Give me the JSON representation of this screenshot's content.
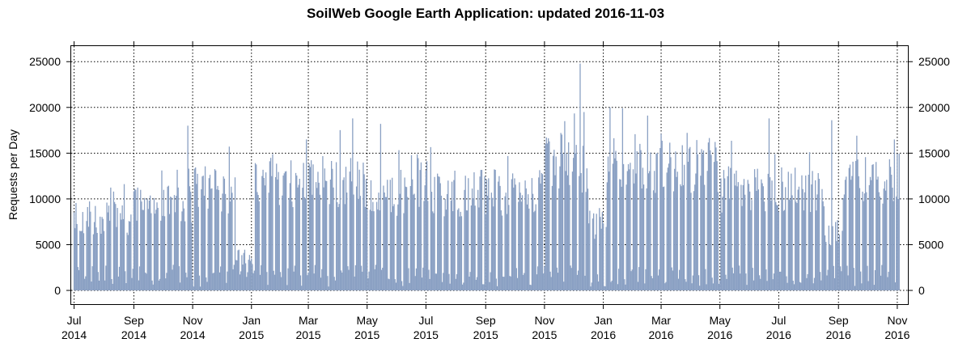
{
  "chart_data": {
    "type": "bar",
    "title": "SoilWeb Google Earth Application: updated 2016-11-03",
    "xlabel": "",
    "ylabel": "Requests per Day",
    "ylim": [
      -1500,
      26700
    ],
    "xlim": [
      "2014-06-28",
      "2016-11-12"
    ],
    "y_ticks": [
      0,
      5000,
      10000,
      15000,
      20000,
      25000
    ],
    "x_ticks": [
      {
        "date": "2014-07-01",
        "label": [
          "Jul",
          "2014"
        ]
      },
      {
        "date": "2014-09-01",
        "label": [
          "Sep",
          "2014"
        ]
      },
      {
        "date": "2014-11-01",
        "label": [
          "Nov",
          "2014"
        ]
      },
      {
        "date": "2015-01-01",
        "label": [
          "Jan",
          "2015"
        ]
      },
      {
        "date": "2015-03-01",
        "label": [
          "Mar",
          "2015"
        ]
      },
      {
        "date": "2015-05-01",
        "label": [
          "May",
          "2015"
        ]
      },
      {
        "date": "2015-07-01",
        "label": [
          "Jul",
          "2015"
        ]
      },
      {
        "date": "2015-09-01",
        "label": [
          "Sep",
          "2015"
        ]
      },
      {
        "date": "2015-11-01",
        "label": [
          "Nov",
          "2015"
        ]
      },
      {
        "date": "2016-01-01",
        "label": [
          "Jan",
          "2016"
        ]
      },
      {
        "date": "2016-03-01",
        "label": [
          "Mar",
          "2016"
        ]
      },
      {
        "date": "2016-05-01",
        "label": [
          "May",
          "2016"
        ]
      },
      {
        "date": "2016-07-01",
        "label": [
          "Jul",
          "2016"
        ]
      },
      {
        "date": "2016-09-01",
        "label": [
          "Sep",
          "2016"
        ]
      },
      {
        "date": "2016-11-01",
        "label": [
          "Nov",
          "2016"
        ]
      }
    ],
    "grid": true,
    "bar_color": "#8aa0c3",
    "series": [
      {
        "start_date": "2014-07-01",
        "end_date": "2016-11-03",
        "interval": "day",
        "weekly_profile": "one or two low days (~500-3000) each week, remaining days high",
        "approx_weekday_level_by_period": [
          {
            "from": "2014-07-01",
            "to": "2014-08-31",
            "value": 8500
          },
          {
            "from": "2014-09-01",
            "to": "2014-10-31",
            "value": 10000
          },
          {
            "from": "2014-11-01",
            "to": "2014-12-15",
            "value": 12000
          },
          {
            "from": "2014-12-16",
            "to": "2015-01-04",
            "value": 4000
          },
          {
            "from": "2015-01-05",
            "to": "2015-04-30",
            "value": 13000
          },
          {
            "from": "2015-05-01",
            "to": "2015-10-31",
            "value": 11500
          },
          {
            "from": "2015-11-01",
            "to": "2015-12-15",
            "value": 15000
          },
          {
            "from": "2015-12-16",
            "to": "2016-01-04",
            "value": 8000
          },
          {
            "from": "2016-01-05",
            "to": "2016-04-30",
            "value": 15000
          },
          {
            "from": "2016-05-01",
            "to": "2016-08-15",
            "value": 12000
          },
          {
            "from": "2016-08-16",
            "to": "2016-09-05",
            "value": 7000
          },
          {
            "from": "2016-09-06",
            "to": "2016-11-03",
            "value": 13000
          }
        ],
        "notable_peaks": [
          {
            "date": "2014-10-27",
            "value": 18000
          },
          {
            "date": "2015-02-27",
            "value": 16500
          },
          {
            "date": "2015-04-16",
            "value": 18800
          },
          {
            "date": "2015-05-15",
            "value": 18200
          },
          {
            "date": "2015-11-22",
            "value": 18500
          },
          {
            "date": "2015-12-08",
            "value": 24800
          },
          {
            "date": "2015-12-12",
            "value": 19500
          },
          {
            "date": "2016-01-08",
            "value": 20000
          },
          {
            "date": "2016-01-21",
            "value": 19900
          },
          {
            "date": "2016-06-21",
            "value": 18800
          },
          {
            "date": "2016-08-25",
            "value": 18600
          },
          {
            "date": "2016-10-29",
            "value": 16500
          }
        ]
      }
    ]
  }
}
